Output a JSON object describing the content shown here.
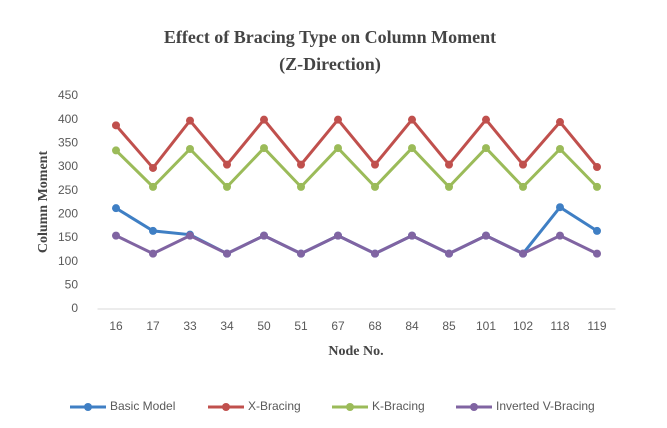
{
  "chart_data": {
    "type": "line",
    "title": "Effect of Bracing Type on Column Moment (Z-Direction)",
    "x_label": "Node No.",
    "y_label": "Column Moment",
    "categories": [
      "16",
      "17",
      "33",
      "34",
      "50",
      "51",
      "67",
      "68",
      "84",
      "85",
      "101",
      "102",
      "118",
      "119"
    ],
    "series": [
      {
        "name": "Basic Model",
        "color": "#3f7fc4",
        "values": [
          213,
          165,
          157,
          117,
          155,
          117,
          155,
          117,
          155,
          117,
          155,
          117,
          215,
          165
        ]
      },
      {
        "name": "X-Bracing",
        "color": "#c0504d",
        "values": [
          388,
          298,
          398,
          305,
          400,
          305,
          400,
          305,
          400,
          305,
          400,
          305,
          395,
          300
        ]
      },
      {
        "name": "K-Bracing",
        "color": "#9bbb59",
        "values": [
          335,
          258,
          338,
          258,
          340,
          258,
          340,
          258,
          340,
          258,
          340,
          258,
          338,
          258
        ]
      },
      {
        "name": "Inverted V-Bracing",
        "color": "#8064a2",
        "values": [
          155,
          117,
          155,
          117,
          155,
          117,
          155,
          117,
          155,
          117,
          155,
          117,
          155,
          117
        ]
      }
    ],
    "ylim": [
      0,
      450
    ],
    "yticks": [
      0,
      50,
      100,
      150,
      200,
      250,
      300,
      350,
      400,
      450
    ],
    "grid": false,
    "legend": "bottom"
  }
}
